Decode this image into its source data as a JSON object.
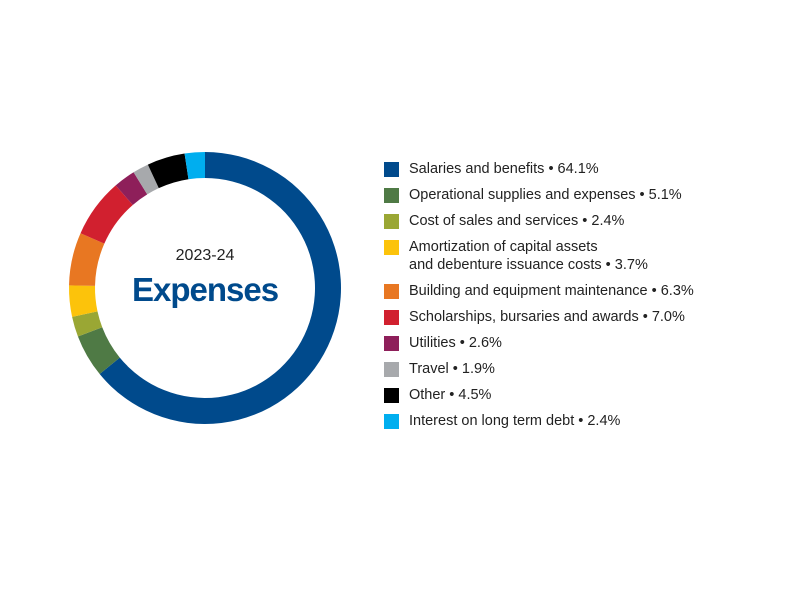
{
  "chart_data": {
    "type": "pie",
    "donut": true,
    "center_year": "2023-24",
    "title": "Expenses",
    "start_angle_deg": 0,
    "legend_position": "right",
    "categories": [
      "Salaries and benefits",
      "Operational supplies and expenses",
      "Cost of sales and services",
      "Amortization of capital assets and debenture issuance costs",
      "Building and equipment maintenance",
      "Scholarships, bursaries and awards",
      "Utilities",
      "Travel",
      "Other",
      "Interest on long term debt"
    ],
    "values": [
      64.1,
      5.1,
      2.4,
      3.7,
      6.3,
      7.0,
      2.6,
      1.9,
      4.5,
      2.4
    ],
    "colors": [
      "#004a8c",
      "#4f7a45",
      "#9aa734",
      "#fcc30b",
      "#e87722",
      "#d1202f",
      "#8e1f5a",
      "#a7a9ac",
      "#000000",
      "#00aeef"
    ],
    "legend": [
      {
        "lines": [
          "Salaries and benefits  • 64.1%"
        ]
      },
      {
        "lines": [
          "Operational supplies and expenses • 5.1%"
        ]
      },
      {
        "lines": [
          "Cost of sales and services • 2.4%"
        ]
      },
      {
        "lines": [
          "Amortization of capital assets",
          "and debenture issuance costs • 3.7%"
        ]
      },
      {
        "lines": [
          "Building and equipment maintenance • 6.3%"
        ]
      },
      {
        "lines": [
          "Scholarships, bursaries and awards • 7.0%"
        ]
      },
      {
        "lines": [
          "Utilities • 2.6%"
        ]
      },
      {
        "lines": [
          "Travel • 1.9%"
        ]
      },
      {
        "lines": [
          "Other • 4.5%"
        ]
      },
      {
        "lines": [
          "Interest on long term debt • 2.4%"
        ]
      }
    ]
  }
}
